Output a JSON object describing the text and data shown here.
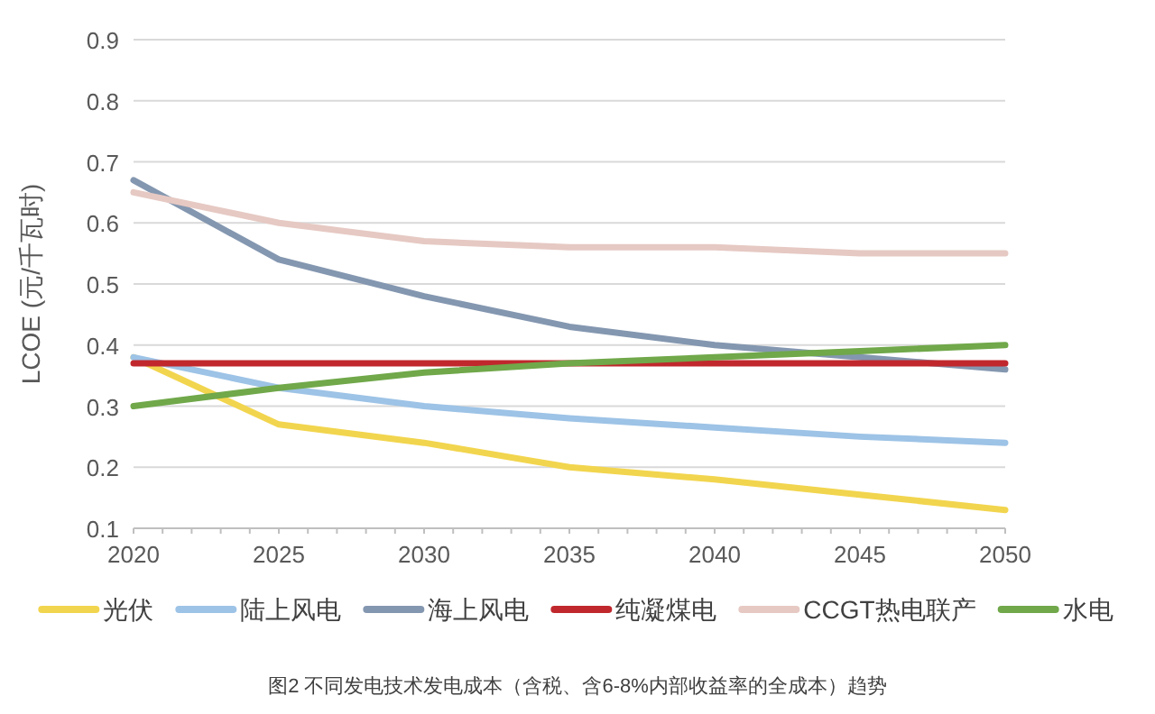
{
  "chart_data": {
    "type": "line",
    "ylabel": "LCOE (元/千瓦时)",
    "x": [
      2020,
      2025,
      2030,
      2035,
      2040,
      2045,
      2050
    ],
    "series": [
      {
        "name": "光伏",
        "color": "#f2d54e",
        "values": [
          0.38,
          0.27,
          0.24,
          0.2,
          0.18,
          0.155,
          0.13
        ]
      },
      {
        "name": "陆上风电",
        "color": "#9dc3e6",
        "values": [
          0.38,
          0.33,
          0.3,
          0.28,
          0.265,
          0.25,
          0.24
        ]
      },
      {
        "name": "海上风电",
        "color": "#8497b0",
        "values": [
          0.67,
          0.54,
          0.48,
          0.43,
          0.4,
          0.38,
          0.36
        ]
      },
      {
        "name": "纯凝煤电",
        "color": "#c0282d",
        "values": [
          0.37,
          0.37,
          0.37,
          0.37,
          0.37,
          0.37,
          0.37
        ]
      },
      {
        "name": "CCGT热电联产",
        "color": "#e6c9c3",
        "values": [
          0.65,
          0.6,
          0.57,
          0.56,
          0.56,
          0.55,
          0.55
        ]
      },
      {
        "name": "水电",
        "color": "#70a84a",
        "values": [
          0.3,
          0.33,
          0.355,
          0.37,
          0.38,
          0.39,
          0.4
        ]
      }
    ],
    "xlim": [
      2020,
      2050
    ],
    "xticks": [
      2020,
      2025,
      2030,
      2035,
      2040,
      2045,
      2050
    ],
    "ylim": [
      0.1,
      0.9
    ],
    "yticks": [
      0.1,
      0.2,
      0.3,
      0.4,
      0.5,
      0.6,
      0.7,
      0.8,
      0.9
    ],
    "grid": "y",
    "legend": "bottom",
    "marker": "none",
    "line_style": "solid",
    "annotations": [
      "图2 不同发电技术发电成本（含税、含6-8%内部收益率的全成本）趋势"
    ]
  }
}
